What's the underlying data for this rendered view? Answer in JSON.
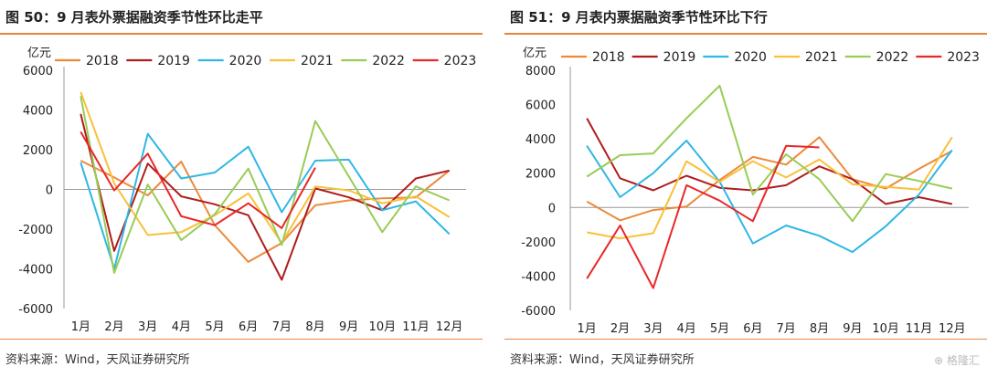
{
  "years": [
    "2018",
    "2019",
    "2020",
    "2021",
    "2022",
    "2023"
  ],
  "colors": {
    "2018": "#ec8a3c",
    "2019": "#b01c1c",
    "2020": "#2fb7e6",
    "2021": "#f9c03a",
    "2022": "#99cc55",
    "2023": "#e8282b",
    "accent": "#e9843c"
  },
  "watermark": "格隆汇",
  "panels": [
    {
      "title": "图 50：9 月表外票据融资季节性环比走平",
      "source": "资料来源：Wind，天风证券研究所"
    },
    {
      "title": "图 51：9 月表内票据融资季节性环比下行",
      "source": "资料来源：Wind，天风证券研究所"
    }
  ],
  "chart_data": [
    {
      "type": "line",
      "title": "图 50：9 月表外票据融资季节性环比走平",
      "ylabel": "亿元",
      "ylim": [
        -6000,
        6000
      ],
      "yticks": [
        -6000,
        -4000,
        -2000,
        0,
        2000,
        4000,
        6000
      ],
      "legend_position": "top",
      "categories": [
        "1月",
        "2月",
        "3月",
        "4月",
        "5月",
        "6月",
        "7月",
        "8月",
        "9月",
        "10月",
        "11月",
        "12月"
      ],
      "series": [
        {
          "name": "2018",
          "values": [
            1450,
            600,
            -300,
            1400,
            -1800,
            -3650,
            -2700,
            -800,
            -550,
            -450,
            -400,
            950
          ]
        },
        {
          "name": "2019",
          "values": [
            3800,
            -3100,
            1300,
            -350,
            -750,
            -1300,
            -4550,
            50,
            -400,
            -1050,
            550,
            950
          ]
        },
        {
          "name": "2020",
          "values": [
            1350,
            -4000,
            2800,
            550,
            850,
            2150,
            -1150,
            1450,
            1500,
            -1050,
            -600,
            -2250
          ]
        },
        {
          "name": "2021",
          "values": [
            4900,
            300,
            -2300,
            -2150,
            -1300,
            -200,
            -2700,
            150,
            -50,
            -700,
            -350,
            -1400
          ]
        },
        {
          "name": "2022",
          "values": [
            4700,
            -4200,
            250,
            -2550,
            -1250,
            1050,
            -2800,
            3450,
            650,
            -2150,
            150,
            -550
          ]
        },
        {
          "name": "2023",
          "values": [
            2900,
            -50,
            1800,
            -1350,
            -1800,
            -700,
            -1950,
            1100,
            null,
            null,
            null,
            null
          ]
        }
      ]
    },
    {
      "type": "line",
      "title": "图 51：9 月表内票据融资季节性环比下行",
      "ylabel": "亿元",
      "ylim": [
        -6000,
        8000
      ],
      "yticks": [
        -6000,
        -4000,
        -2000,
        0,
        2000,
        4000,
        6000,
        8000
      ],
      "legend_position": "top",
      "categories": [
        "1月",
        "2月",
        "3月",
        "4月",
        "5月",
        "6月",
        "7月",
        "8月",
        "9月",
        "10月",
        "11月",
        "12月"
      ],
      "series": [
        {
          "name": "2018",
          "values": [
            350,
            -750,
            -150,
            50,
            1600,
            2950,
            2500,
            4100,
            1650,
            1100,
            2250,
            3300
          ]
        },
        {
          "name": "2019",
          "values": [
            5200,
            1700,
            1000,
            1850,
            1150,
            1000,
            1300,
            2400,
            1650,
            200,
            600,
            200
          ]
        },
        {
          "name": "2020",
          "values": [
            3600,
            600,
            2000,
            3900,
            1500,
            -2100,
            -1050,
            -1650,
            -2600,
            -1100,
            750,
            3350
          ]
        },
        {
          "name": "2021",
          "values": [
            -1450,
            -1800,
            -1500,
            2700,
            1500,
            2700,
            1750,
            2800,
            1350,
            1200,
            1050,
            4100
          ]
        },
        {
          "name": "2022",
          "values": [
            1800,
            3050,
            3150,
            5200,
            7100,
            750,
            3100,
            1650,
            -800,
            1950,
            1550,
            1100
          ]
        },
        {
          "name": "2023",
          "values": [
            -4150,
            -1050,
            -4700,
            1300,
            400,
            -800,
            3600,
            3500,
            null,
            null,
            null,
            null
          ]
        }
      ]
    }
  ]
}
